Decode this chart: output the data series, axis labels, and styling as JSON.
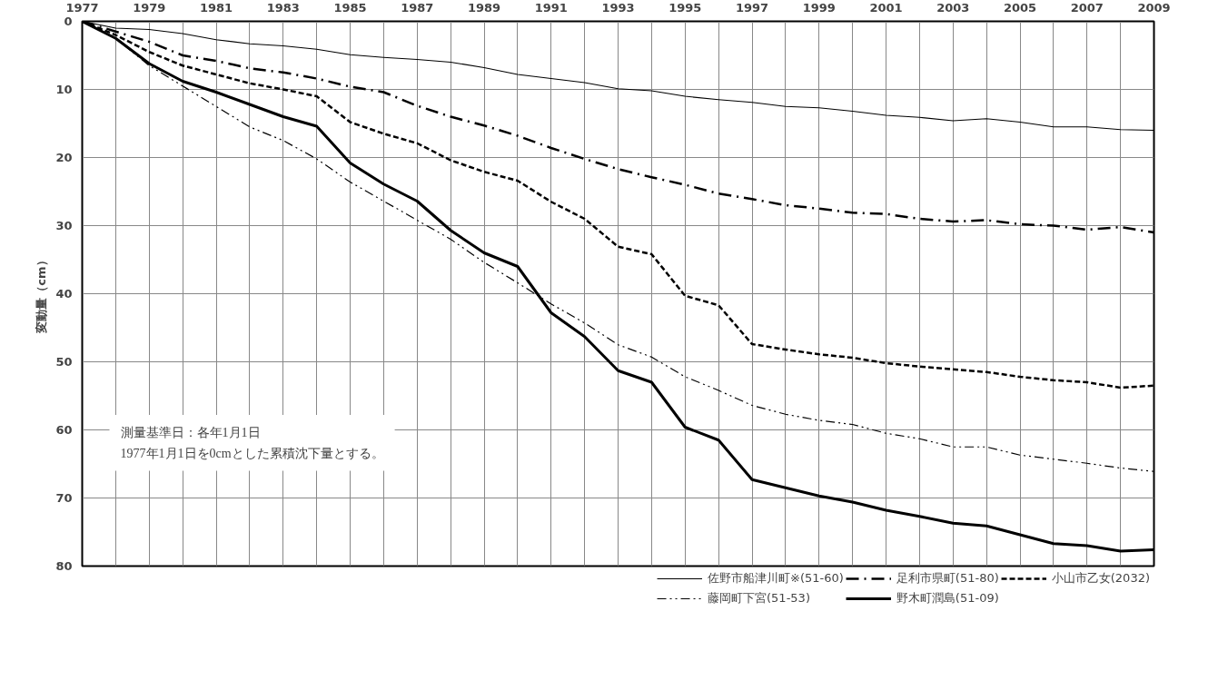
{
  "chart_data": {
    "type": "line",
    "ylabel": "変動量（cm）",
    "x": [
      1977,
      1978,
      1979,
      1980,
      1981,
      1982,
      1983,
      1984,
      1985,
      1986,
      1987,
      1988,
      1989,
      1990,
      1991,
      1992,
      1993,
      1994,
      1995,
      1996,
      1997,
      1998,
      1999,
      2000,
      2001,
      2002,
      2003,
      2004,
      2005,
      2006,
      2007,
      2008,
      2009
    ],
    "xlim": [
      1977,
      2009
    ],
    "xticks": [
      1977,
      {
        "value": 1978,
        "label": null
      },
      1979,
      {
        "value": 1980,
        "label": null
      },
      1981,
      {
        "value": 1982,
        "label": null
      },
      1983,
      {
        "value": 1984,
        "label": null
      },
      1985,
      {
        "value": 1986,
        "label": null
      },
      1987,
      {
        "value": 1988,
        "label": null
      },
      1989,
      {
        "value": 1990,
        "label": null
      },
      1991,
      {
        "value": 1992,
        "label": null
      },
      1993,
      {
        "value": 1994,
        "label": null
      },
      1995,
      {
        "value": 1996,
        "label": null
      },
      1997,
      {
        "value": 1998,
        "label": null
      },
      1999,
      {
        "value": 2000,
        "label": null
      },
      2001,
      {
        "value": 2002,
        "label": null
      },
      2003,
      {
        "value": 2004,
        "label": null
      },
      2005,
      {
        "value": 2006,
        "label": null
      },
      2007,
      {
        "value": 2008,
        "label": null
      },
      2009
    ],
    "ylim": [
      80,
      0
    ],
    "yticks": [
      0,
      10,
      20,
      30,
      40,
      50,
      60,
      70,
      80
    ],
    "grid": true,
    "legend": "bottom",
    "marker": "none",
    "annotations": [
      "測量基準日：各年1月1日",
      "1977年1月1日を0cmとした累積沈下量とする。"
    ],
    "series": [
      {
        "name": "佐野市船津川町※(51-60)",
        "color": "#000000",
        "line_style": "solid",
        "values": [
          0,
          1.0,
          1.2,
          1.8,
          2.7,
          3.3,
          3.6,
          4.1,
          4.9,
          5.3,
          5.6,
          6.0,
          6.8,
          7.8,
          8.4,
          9.0,
          9.9,
          10.2,
          11.0,
          11.5,
          11.9,
          12.5,
          12.7,
          13.2,
          13.8,
          14.1,
          14.6,
          14.3,
          14.8,
          15.5,
          15.5,
          15.9,
          16.0
        ]
      },
      {
        "name": "足利市県町(51-80)",
        "color": "#000000",
        "line_style": "dashdot",
        "values": [
          0,
          1.5,
          3.0,
          5.0,
          5.8,
          6.9,
          7.5,
          8.4,
          9.6,
          10.4,
          12.4,
          14.0,
          15.3,
          16.8,
          18.6,
          20.2,
          21.7,
          22.9,
          24.0,
          25.3,
          26.1,
          27.0,
          27.5,
          28.1,
          28.3,
          29.0,
          29.4,
          29.2,
          29.8,
          30.0,
          30.6,
          30.2,
          31.0
        ]
      },
      {
        "name": "小山市乙女(2032)",
        "color": "#000000",
        "line_style": "dashed",
        "values": [
          0,
          2.0,
          4.5,
          6.5,
          7.8,
          9.1,
          10.0,
          11.0,
          14.8,
          16.5,
          17.9,
          20.4,
          22.1,
          23.4,
          26.5,
          29.0,
          33.1,
          34.2,
          40.3,
          41.7,
          47.4,
          48.2,
          48.9,
          49.4,
          50.2,
          50.7,
          51.1,
          51.5,
          52.2,
          52.7,
          53.0,
          53.8,
          53.5
        ]
      },
      {
        "name": "藤岡町下宮(51-53)",
        "color": "#000000",
        "line_style": "dashdotdot",
        "values": [
          0,
          2.5,
          6.5,
          9.5,
          12.5,
          15.5,
          17.5,
          20.2,
          23.6,
          26.4,
          29.2,
          32.0,
          35.4,
          38.4,
          41.5,
          44.3,
          47.5,
          49.3,
          52.2,
          54.2,
          56.4,
          57.7,
          58.6,
          59.2,
          60.5,
          61.3,
          62.5,
          62.5,
          63.7,
          64.3,
          64.9,
          65.6,
          66.1
        ]
      },
      {
        "name": "野木町潤島(51-09)",
        "color": "#000000",
        "line_style": "solid",
        "values": [
          0,
          2.5,
          6.2,
          8.8,
          10.4,
          12.2,
          14.0,
          15.4,
          20.8,
          23.9,
          26.4,
          30.7,
          34.0,
          36.0,
          42.8,
          46.3,
          51.3,
          53.0,
          59.6,
          61.5,
          67.3,
          68.5,
          69.7,
          70.6,
          71.8,
          72.7,
          73.7,
          74.1,
          75.4,
          76.7,
          77.0,
          77.8,
          77.6
        ]
      }
    ]
  }
}
